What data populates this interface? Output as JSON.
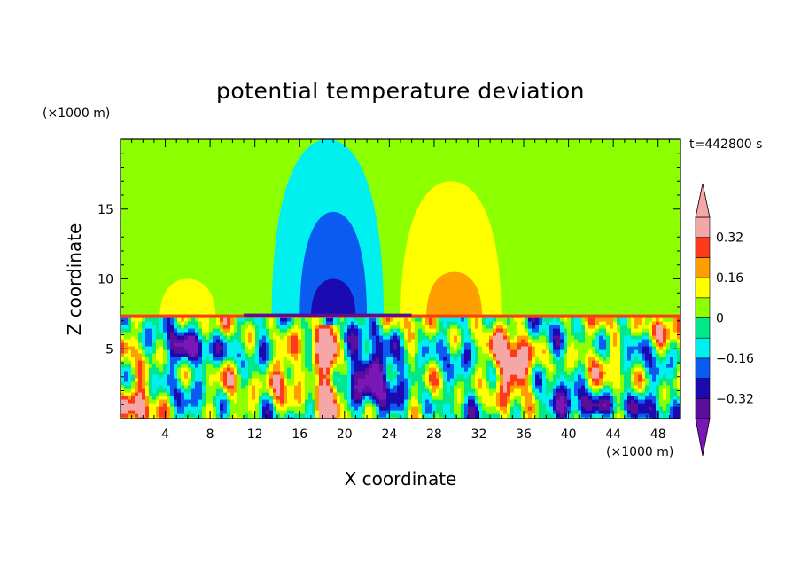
{
  "chart_data": {
    "type": "heatmap",
    "title": "potential temperature deviation",
    "xlabel": "X coordinate",
    "ylabel": "Z coordinate",
    "x_unit": "(×1000 m)",
    "y_unit": "(×1000 m)",
    "time_label": "t=442800 s",
    "xlim": [
      0,
      50
    ],
    "ylim": [
      0,
      20
    ],
    "x_ticks": [
      4,
      8,
      12,
      16,
      20,
      24,
      28,
      32,
      36,
      40,
      44,
      48
    ],
    "y_ticks": [
      5,
      10,
      15
    ],
    "colorbar": {
      "levels": [
        -0.4,
        -0.32,
        -0.24,
        -0.16,
        -0.08,
        0,
        0.08,
        0.16,
        0.24,
        0.32,
        0.4
      ],
      "labels": [
        "0.32",
        "0.16",
        "0",
        "−0.16",
        "−0.32"
      ],
      "label_values": [
        0.32,
        0.16,
        0,
        -0.16,
        -0.32
      ],
      "colors": [
        "#7a17b8",
        "#5a0e9a",
        "#1a0ab0",
        "#0a5cf0",
        "#00f0f0",
        "#00e88a",
        "#8cff00",
        "#ffff00",
        "#ff9e00",
        "#ff3a1a",
        "#f5a6a6"
      ],
      "under_color": "#7a17b8",
      "over_color": "#f5a6a6"
    },
    "background_color": "#8cff00",
    "features": [
      {
        "value": -0.12,
        "x_center": 18.5,
        "z_top": 20,
        "z_bottom": 7.2,
        "half_width": 5
      },
      {
        "value": -0.2,
        "x_center": 19,
        "z_top": 14.8,
        "z_bottom": 7.2,
        "half_width": 3
      },
      {
        "value": -0.28,
        "x_center": 19,
        "z_top": 10,
        "z_bottom": 7.2,
        "half_width": 2
      },
      {
        "value": 0.12,
        "x_center": 29.5,
        "z_top": 17,
        "z_bottom": 7.2,
        "half_width": 4.5
      },
      {
        "value": 0.2,
        "x_center": 29.8,
        "z_top": 10.5,
        "z_bottom": 7.2,
        "half_width": 2.5
      },
      {
        "value": 0.04,
        "x_center": 17,
        "z_top": 20,
        "z_bottom": 7.2,
        "half_width": 8
      },
      {
        "value": 0.04,
        "x_center": 46.5,
        "z_top": 19,
        "z_bottom": 7.2,
        "half_width": 3
      },
      {
        "value": 0.12,
        "x_center": 6,
        "z_top": 10,
        "z_bottom": 7.2,
        "half_width": 2.5
      }
    ]
  }
}
